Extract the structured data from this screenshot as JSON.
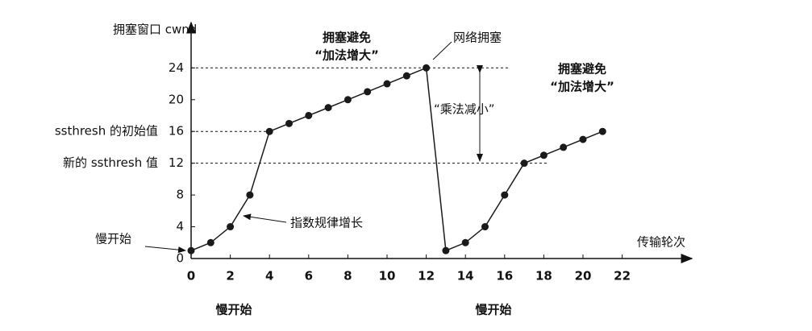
{
  "chart_data": {
    "type": "line",
    "y_label": "拥塞窗口 cwnd",
    "x_label": "传输轮次",
    "x": [
      0,
      1,
      2,
      3,
      4,
      5,
      6,
      7,
      8,
      9,
      10,
      11,
      12,
      13,
      14,
      15,
      16,
      17,
      18,
      19,
      20,
      21
    ],
    "series": [
      {
        "color": "#1a1a1a",
        "values": [
          1,
          2,
          4,
          8,
          16,
          17,
          18,
          19,
          20,
          21,
          22,
          23,
          24,
          1,
          2,
          4,
          8,
          12,
          13,
          14,
          15,
          16
        ]
      }
    ],
    "xlim": [
      0,
      25
    ],
    "ylim": [
      0,
      29
    ],
    "xticks": [
      0,
      2,
      4,
      6,
      8,
      10,
      12,
      14,
      16,
      18,
      20,
      22
    ],
    "yticks": [
      0,
      4,
      8,
      12,
      16,
      20,
      24
    ],
    "hlines": [
      24,
      16,
      12
    ],
    "annotations": [
      "ssthresh 的初始值",
      "新的 ssthresh 值",
      "慢开始",
      "指数规律增长",
      "拥塞避免",
      "“加法增大”",
      "网络拥塞",
      "“乘法减小”",
      "拥塞避免",
      "“加法增大”",
      "慢开始",
      "慢开始"
    ]
  }
}
